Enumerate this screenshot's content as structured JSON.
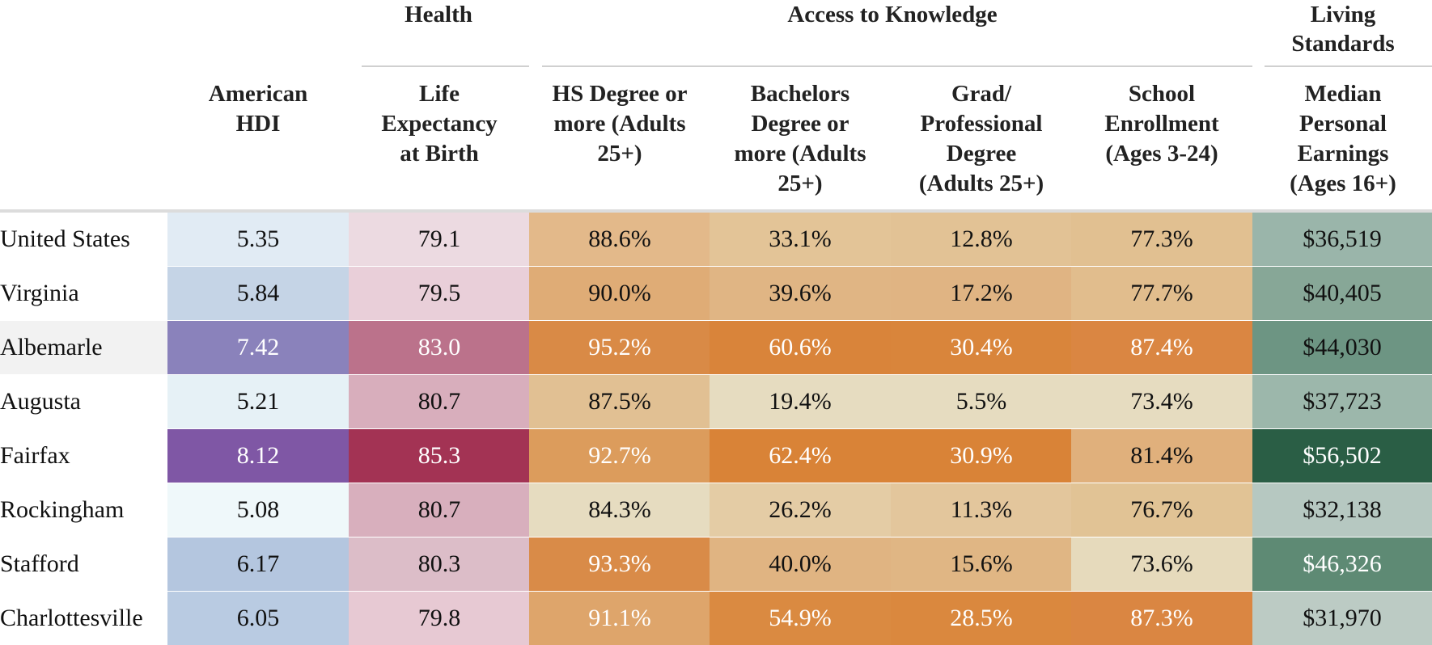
{
  "chart_data": {
    "type": "table",
    "groups": [
      {
        "label": "Health",
        "columns": [
          1
        ]
      },
      {
        "label": "Access to Knowledge",
        "columns": [
          2,
          3,
          4,
          5
        ]
      },
      {
        "label": "Living Standards",
        "columns": [
          6
        ]
      }
    ],
    "columns": [
      "American HDI",
      "Life Expectancy at Birth",
      "HS Degree or more (Adults 25+)",
      "Bachelors Degree or more (Adults 25+)",
      "Grad/ Professional Degree (Adults 25+)",
      "School Enrollment (Ages 3-24)",
      "Median Personal Earnings (Ages 16+)"
    ],
    "header_lines": [
      [
        "American",
        "HDI"
      ],
      [
        "Life",
        "Expectancy",
        "at Birth"
      ],
      [
        "HS Degree or",
        "more (Adults",
        "25+)"
      ],
      [
        "Bachelors",
        "Degree or",
        "more (Adults",
        "25+)"
      ],
      [
        "Grad/",
        "Professional",
        "Degree",
        "(Adults 25+)"
      ],
      [
        "School",
        "Enrollment",
        "(Ages 3-24)"
      ],
      [
        "Median",
        "Personal",
        "Earnings",
        "(Ages 16+)"
      ]
    ],
    "rows": [
      {
        "name": "United States",
        "cells": [
          "5.35",
          "79.1",
          "88.6%",
          "33.1%",
          "12.8%",
          "77.3%",
          "$36,519"
        ]
      },
      {
        "name": "Virginia",
        "cells": [
          "5.84",
          "79.5",
          "90.0%",
          "39.6%",
          "17.2%",
          "77.7%",
          "$40,405"
        ]
      },
      {
        "name": "Albemarle",
        "cells": [
          "7.42",
          "83.0",
          "95.2%",
          "60.6%",
          "30.4%",
          "87.4%",
          "$44,030"
        ]
      },
      {
        "name": "Augusta",
        "cells": [
          "5.21",
          "80.7",
          "87.5%",
          "19.4%",
          "5.5%",
          "73.4%",
          "$37,723"
        ]
      },
      {
        "name": "Fairfax",
        "cells": [
          "8.12",
          "85.3",
          "92.7%",
          "62.4%",
          "30.9%",
          "81.4%",
          "$56,502"
        ]
      },
      {
        "name": "Rockingham",
        "cells": [
          "5.08",
          "80.7",
          "84.3%",
          "26.2%",
          "11.3%",
          "76.7%",
          "$32,138"
        ]
      },
      {
        "name": "Stafford",
        "cells": [
          "6.17",
          "80.3",
          "93.3%",
          "40.0%",
          "15.6%",
          "73.6%",
          "$46,326"
        ]
      },
      {
        "name": "Charlottesville",
        "cells": [
          "6.05",
          "79.8",
          "91.1%",
          "54.9%",
          "28.5%",
          "87.3%",
          "$31,970"
        ]
      }
    ],
    "highlighted_row": "Albemarle",
    "colors": {
      "highlight_row_bg": "#f2f2f2",
      "hdi_scale": [
        "#eef6f9",
        "#7e55a3"
      ],
      "life_scale": [
        "#edd8e0",
        "#a33354"
      ],
      "knowledge_scale": [
        "#e6dcc0",
        "#da8337"
      ],
      "earnings_scale": [
        "#b6c8c1",
        "#2a5e45"
      ]
    }
  },
  "cell_styles": [
    [
      {
        "bg": "#e1ebf4",
        "fg": "#111111"
      },
      {
        "bg": "#ecdae1",
        "fg": "#111111"
      },
      {
        "bg": "#e3b98a",
        "fg": "#111111"
      },
      {
        "bg": "#e3c497",
        "fg": "#111111"
      },
      {
        "bg": "#e2c295",
        "fg": "#111111"
      },
      {
        "bg": "#e1c091",
        "fg": "#111111"
      },
      {
        "bg": "#9ab5aa",
        "fg": "#111111"
      }
    ],
    [
      {
        "bg": "#c5d4e6",
        "fg": "#111111"
      },
      {
        "bg": "#e9cfd9",
        "fg": "#111111"
      },
      {
        "bg": "#dfac76",
        "fg": "#111111"
      },
      {
        "bg": "#e0b584",
        "fg": "#111111"
      },
      {
        "bg": "#e0b483",
        "fg": "#111111"
      },
      {
        "bg": "#e1bd8d",
        "fg": "#111111"
      },
      {
        "bg": "#87a797",
        "fg": "#111111"
      }
    ],
    [
      {
        "bg": "#8a82bb",
        "fg": "#ffffff"
      },
      {
        "bg": "#bb728b",
        "fg": "#ffffff"
      },
      {
        "bg": "#d98a46",
        "fg": "#ffffff"
      },
      {
        "bg": "#d9843a",
        "fg": "#ffffff"
      },
      {
        "bg": "#d9853b",
        "fg": "#ffffff"
      },
      {
        "bg": "#da8642",
        "fg": "#ffffff"
      },
      {
        "bg": "#6d9583",
        "fg": "#111111"
      }
    ],
    [
      {
        "bg": "#e6f1f6",
        "fg": "#111111"
      },
      {
        "bg": "#d8aebc",
        "fg": "#111111"
      },
      {
        "bg": "#e1c093",
        "fg": "#111111"
      },
      {
        "bg": "#e6dcc0",
        "fg": "#111111"
      },
      {
        "bg": "#e6dcc0",
        "fg": "#111111"
      },
      {
        "bg": "#e6dcc0",
        "fg": "#111111"
      },
      {
        "bg": "#9cb7ab",
        "fg": "#111111"
      }
    ],
    [
      {
        "bg": "#7f57a5",
        "fg": "#ffffff"
      },
      {
        "bg": "#a33354",
        "fg": "#ffffff"
      },
      {
        "bg": "#dc9c5c",
        "fg": "#ffffff"
      },
      {
        "bg": "#d98337",
        "fg": "#ffffff"
      },
      {
        "bg": "#d98337",
        "fg": "#ffffff"
      },
      {
        "bg": "#e0b07c",
        "fg": "#111111"
      },
      {
        "bg": "#2a5e45",
        "fg": "#ffffff"
      }
    ],
    [
      {
        "bg": "#eff8fa",
        "fg": "#111111"
      },
      {
        "bg": "#d8afbd",
        "fg": "#111111"
      },
      {
        "bg": "#e6dcc0",
        "fg": "#111111"
      },
      {
        "bg": "#e4cca5",
        "fg": "#111111"
      },
      {
        "bg": "#e3c69c",
        "fg": "#111111"
      },
      {
        "bg": "#e1c395",
        "fg": "#111111"
      },
      {
        "bg": "#b6c8c1",
        "fg": "#111111"
      }
    ],
    [
      {
        "bg": "#b4c6df",
        "fg": "#111111"
      },
      {
        "bg": "#dcbdc8",
        "fg": "#111111"
      },
      {
        "bg": "#d98b48",
        "fg": "#ffffff"
      },
      {
        "bg": "#e0b482",
        "fg": "#111111"
      },
      {
        "bg": "#e0b684",
        "fg": "#111111"
      },
      {
        "bg": "#e6dabc",
        "fg": "#111111"
      },
      {
        "bg": "#5e8a74",
        "fg": "#ffffff"
      }
    ],
    [
      {
        "bg": "#b9cbe2",
        "fg": "#111111"
      },
      {
        "bg": "#e7c9d3",
        "fg": "#111111"
      },
      {
        "bg": "#dea56b",
        "fg": "#ffffff"
      },
      {
        "bg": "#da8a41",
        "fg": "#ffffff"
      },
      {
        "bg": "#da883e",
        "fg": "#ffffff"
      },
      {
        "bg": "#da8642",
        "fg": "#ffffff"
      },
      {
        "bg": "#bccbc4",
        "fg": "#111111"
      }
    ]
  ]
}
